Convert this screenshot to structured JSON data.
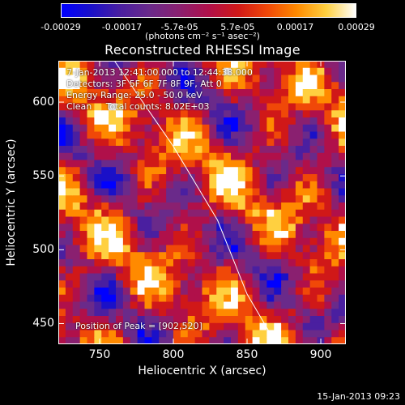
{
  "colorbar": {
    "tick_labels": [
      "-0.00029",
      "-0.00017",
      "-5.7e-05",
      "5.7e-05",
      "0.00017",
      "0.00029"
    ],
    "tick_values": [
      -0.00029,
      -0.00017,
      -5.7e-05,
      5.7e-05,
      0.00017,
      0.00029
    ],
    "unit_label": "(photons cm⁻² s⁻¹ asec⁻²)",
    "colors": [
      "#0000ff",
      "#1a10c8",
      "#4a1fa0",
      "#6a2a8a",
      "#8a2070",
      "#b0104a",
      "#d01818",
      "#f04808",
      "#ff8a00",
      "#ffd040",
      "#ffffff"
    ]
  },
  "chart_data": {
    "type": "heatmap",
    "title": "Reconstructed RHESSI Image",
    "xlabel": "Heliocentric X (arcsec)",
    "ylabel": "Heliocentric Y (arcsec)",
    "xlim": [
      722,
      917
    ],
    "ylim": [
      436,
      628
    ],
    "x_ticks": [
      750,
      800,
      850,
      900
    ],
    "y_ticks": [
      450,
      500,
      550,
      600
    ],
    "peak": [
      902,
      520
    ],
    "limb_line": [
      [
        760,
        628
      ],
      [
        800,
        570
      ],
      [
        830,
        520
      ],
      [
        850,
        470
      ],
      [
        870,
        436
      ]
    ],
    "annotations": {
      "time_range": "7-Jan-2013 12:41:00.000 to 12:44:38.000",
      "detectors": "Detectors: 3F 5F 6F 7F 8F 9F, Att 0",
      "energy": "Energy Range: 25.0 - 50.0 keV",
      "method": "Clean     Total counts: 8.02E+03",
      "peak_text": "Position of Peak = [902,520]"
    }
  },
  "footer": {
    "timestamp": "15-Jan-2013 09:23"
  }
}
